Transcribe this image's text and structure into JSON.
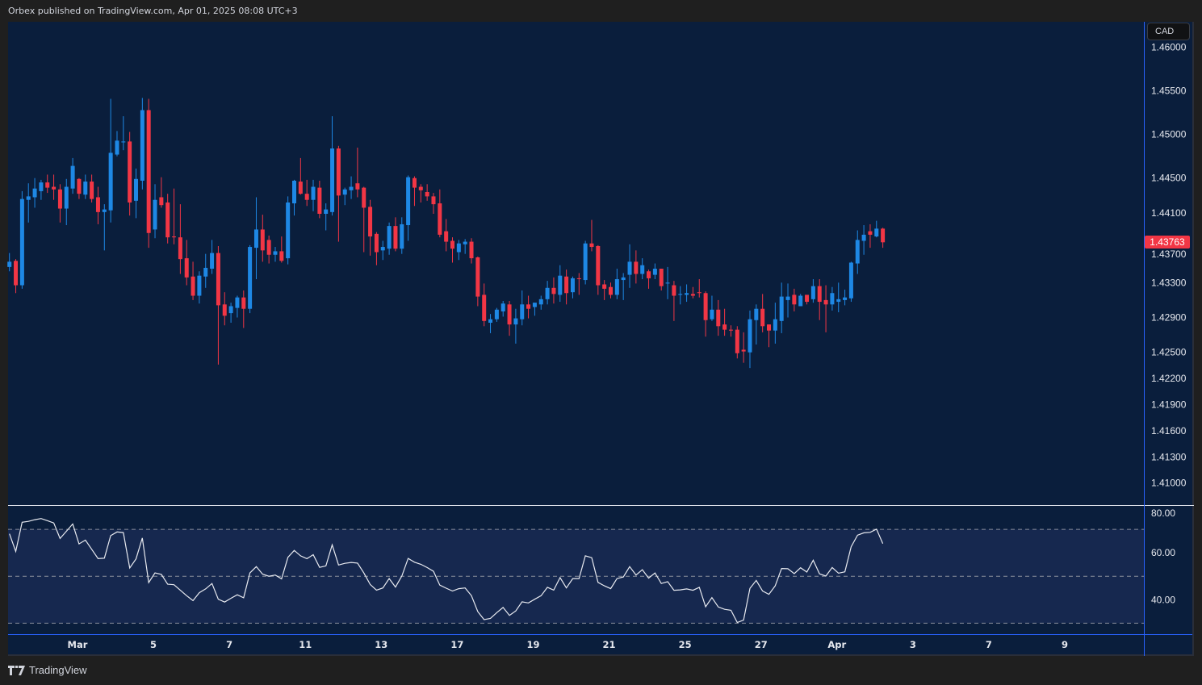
{
  "header": {
    "publisher_line": "Orbex published on TradingView.com, Apr 01, 2025 08:08 UTC+3"
  },
  "currency_button": "CAD",
  "last_price_label": "1.43763",
  "footer": {
    "brand": "TradingView",
    "logo_icon": "tradingview-logo-icon"
  },
  "colors": {
    "up": "#1e88e5",
    "down": "#f23645",
    "background": "#0a1e3c",
    "rsi_line": "#e8eaf0",
    "rsi_band": "#16284f",
    "separator": "#2962ff"
  },
  "chart_data": [
    {
      "type": "candlestick",
      "title": "",
      "xlabel": "",
      "ylabel": "",
      "ylim": [
        1.40747,
        1.46294
      ],
      "grid": false,
      "x_tick_labels": [
        "Mar",
        "5",
        "7",
        "11",
        "13",
        "17",
        "19",
        "21",
        "25",
        "27",
        "Apr",
        "3",
        "7",
        "9"
      ],
      "y_tick_labels": [
        "1.46000",
        "1.45500",
        "1.45000",
        "1.44500",
        "1.44100",
        "1.43700",
        "1.43300",
        "1.42900",
        "1.42500",
        "1.42200",
        "1.41900",
        "1.41600",
        "1.41300",
        "1.41000"
      ],
      "last_price": 1.43763,
      "candles_ohlc": [
        [
          1.4348,
          1.4364,
          1.4343,
          1.4354
        ],
        [
          1.4355,
          1.4357,
          1.4318,
          1.4327
        ],
        [
          1.4327,
          1.4435,
          1.4323,
          1.4426
        ],
        [
          1.4425,
          1.4444,
          1.4399,
          1.4429
        ],
        [
          1.4428,
          1.445,
          1.4416,
          1.4438
        ],
        [
          1.4435,
          1.4448,
          1.4425,
          1.4445
        ],
        [
          1.4445,
          1.4454,
          1.4433,
          1.4439
        ],
        [
          1.444,
          1.4454,
          1.4425,
          1.4437
        ],
        [
          1.4437,
          1.4443,
          1.4399,
          1.4415
        ],
        [
          1.4415,
          1.4449,
          1.4396,
          1.444
        ],
        [
          1.4438,
          1.4473,
          1.4432,
          1.4464
        ],
        [
          1.4449,
          1.445,
          1.4426,
          1.4432
        ],
        [
          1.4431,
          1.4454,
          1.4426,
          1.4446
        ],
        [
          1.4446,
          1.4454,
          1.4422,
          1.4426
        ],
        [
          1.4428,
          1.444,
          1.4397,
          1.4411
        ],
        [
          1.4411,
          1.442,
          1.4367,
          1.4414
        ],
        [
          1.4413,
          1.4541,
          1.4399,
          1.4479
        ],
        [
          1.4477,
          1.4504,
          1.4475,
          1.4493
        ],
        [
          1.4491,
          1.4521,
          1.4482,
          1.4492
        ],
        [
          1.4492,
          1.4503,
          1.4407,
          1.4422
        ],
        [
          1.4424,
          1.4461,
          1.4404,
          1.4449
        ],
        [
          1.4447,
          1.4542,
          1.4437,
          1.4528
        ],
        [
          1.4528,
          1.4541,
          1.437,
          1.4387
        ],
        [
          1.4391,
          1.4443,
          1.4381,
          1.4425
        ],
        [
          1.4428,
          1.4451,
          1.4416,
          1.4419
        ],
        [
          1.4422,
          1.4432,
          1.4375,
          1.4382
        ],
        [
          1.4383,
          1.4438,
          1.4374,
          1.4382
        ],
        [
          1.4382,
          1.442,
          1.434,
          1.4357
        ],
        [
          1.4358,
          1.4379,
          1.4327,
          1.4336
        ],
        [
          1.4337,
          1.4354,
          1.431,
          1.4315
        ],
        [
          1.4315,
          1.4343,
          1.4306,
          1.4338
        ],
        [
          1.4337,
          1.4363,
          1.4324,
          1.4347
        ],
        [
          1.4346,
          1.4379,
          1.434,
          1.4364
        ],
        [
          1.4364,
          1.4372,
          1.4236,
          1.4304
        ],
        [
          1.4305,
          1.4319,
          1.4281,
          1.4292
        ],
        [
          1.4295,
          1.4307,
          1.4284,
          1.4303
        ],
        [
          1.4301,
          1.4315,
          1.429,
          1.4313
        ],
        [
          1.4313,
          1.4321,
          1.4278,
          1.43
        ],
        [
          1.43,
          1.4373,
          1.4295,
          1.4371
        ],
        [
          1.437,
          1.4428,
          1.4334,
          1.4391
        ],
        [
          1.4391,
          1.4408,
          1.4354,
          1.4367
        ],
        [
          1.4379,
          1.4384,
          1.4352,
          1.4362
        ],
        [
          1.4362,
          1.4371,
          1.4354,
          1.4366
        ],
        [
          1.4366,
          1.4383,
          1.4353,
          1.4355
        ],
        [
          1.4358,
          1.4429,
          1.4351,
          1.4422
        ],
        [
          1.4421,
          1.4448,
          1.4407,
          1.4447
        ],
        [
          1.4446,
          1.4473,
          1.4431,
          1.4432
        ],
        [
          1.4432,
          1.4448,
          1.4418,
          1.4425
        ],
        [
          1.4425,
          1.4448,
          1.4412,
          1.444
        ],
        [
          1.4439,
          1.4447,
          1.4404,
          1.4409
        ],
        [
          1.4409,
          1.4421,
          1.439,
          1.4414
        ],
        [
          1.4411,
          1.4521,
          1.4407,
          1.4484
        ],
        [
          1.4484,
          1.4487,
          1.4377,
          1.443
        ],
        [
          1.4431,
          1.4439,
          1.4419,
          1.4437
        ],
        [
          1.4436,
          1.4452,
          1.4426,
          1.444
        ],
        [
          1.4444,
          1.4485,
          1.4428,
          1.4437
        ],
        [
          1.4439,
          1.444,
          1.4365,
          1.4416
        ],
        [
          1.4417,
          1.4425,
          1.4361,
          1.4383
        ],
        [
          1.4386,
          1.4388,
          1.435,
          1.4365
        ],
        [
          1.4367,
          1.4378,
          1.4356,
          1.4371
        ],
        [
          1.4369,
          1.4399,
          1.4362,
          1.4395
        ],
        [
          1.4395,
          1.4405,
          1.4366,
          1.4369
        ],
        [
          1.4369,
          1.4405,
          1.4363,
          1.4397
        ],
        [
          1.4396,
          1.4453,
          1.4378,
          1.4451
        ],
        [
          1.445,
          1.4452,
          1.4418,
          1.4439
        ],
        [
          1.444,
          1.4443,
          1.4422,
          1.4436
        ],
        [
          1.4434,
          1.4443,
          1.4424,
          1.4429
        ],
        [
          1.4429,
          1.4433,
          1.4409,
          1.442
        ],
        [
          1.4421,
          1.4437,
          1.4382,
          1.4385
        ],
        [
          1.4389,
          1.4403,
          1.4366,
          1.4377
        ],
        [
          1.4378,
          1.4382,
          1.4353,
          1.4369
        ],
        [
          1.4365,
          1.4379,
          1.4356,
          1.4375
        ],
        [
          1.4374,
          1.438,
          1.4363,
          1.4377
        ],
        [
          1.4377,
          1.4381,
          1.4352,
          1.4358
        ],
        [
          1.4359,
          1.436,
          1.4303,
          1.4314
        ],
        [
          1.4316,
          1.4329,
          1.428,
          1.4286
        ],
        [
          1.4284,
          1.4294,
          1.4272,
          1.4288
        ],
        [
          1.4288,
          1.4301,
          1.4285,
          1.4299
        ],
        [
          1.4297,
          1.4309,
          1.4291,
          1.4306
        ],
        [
          1.4305,
          1.4309,
          1.4269,
          1.4282
        ],
        [
          1.4282,
          1.43,
          1.426,
          1.4289
        ],
        [
          1.4288,
          1.4321,
          1.4281,
          1.4305
        ],
        [
          1.4305,
          1.4315,
          1.4289,
          1.43
        ],
        [
          1.4302,
          1.4307,
          1.4292,
          1.4307
        ],
        [
          1.4305,
          1.4315,
          1.4299,
          1.4311
        ],
        [
          1.4311,
          1.4332,
          1.4305,
          1.4324
        ],
        [
          1.4324,
          1.4336,
          1.4306,
          1.4317
        ],
        [
          1.4316,
          1.435,
          1.4308,
          1.4338
        ],
        [
          1.4337,
          1.4345,
          1.4305,
          1.4318
        ],
        [
          1.4319,
          1.4337,
          1.4312,
          1.4335
        ],
        [
          1.4335,
          1.4341,
          1.4316,
          1.4334
        ],
        [
          1.4333,
          1.4378,
          1.4328,
          1.4375
        ],
        [
          1.4375,
          1.4402,
          1.4366,
          1.4371
        ],
        [
          1.4372,
          1.4373,
          1.4316,
          1.4327
        ],
        [
          1.4328,
          1.4333,
          1.431,
          1.4323
        ],
        [
          1.4325,
          1.433,
          1.4312,
          1.4316
        ],
        [
          1.4316,
          1.4346,
          1.4311,
          1.4334
        ],
        [
          1.4333,
          1.4341,
          1.431,
          1.4336
        ],
        [
          1.4339,
          1.4374,
          1.4324,
          1.4354
        ],
        [
          1.4354,
          1.4367,
          1.4329,
          1.434
        ],
        [
          1.434,
          1.4358,
          1.4334,
          1.435
        ],
        [
          1.4343,
          1.4345,
          1.4323,
          1.4335
        ],
        [
          1.4339,
          1.4352,
          1.4334,
          1.4346
        ],
        [
          1.4346,
          1.4346,
          1.4321,
          1.4326
        ],
        [
          1.4329,
          1.4348,
          1.4311,
          1.433
        ],
        [
          1.4327,
          1.4332,
          1.4286,
          1.4315
        ],
        [
          1.4316,
          1.4326,
          1.4305,
          1.4317
        ],
        [
          1.4316,
          1.4328,
          1.4308,
          1.4318
        ],
        [
          1.4317,
          1.4325,
          1.4312,
          1.4315
        ],
        [
          1.4319,
          1.4334,
          1.4313,
          1.4318
        ],
        [
          1.4318,
          1.432,
          1.4268,
          1.4287
        ],
        [
          1.4288,
          1.4315,
          1.4286,
          1.4299
        ],
        [
          1.4299,
          1.431,
          1.4269,
          1.428
        ],
        [
          1.4282,
          1.43,
          1.4269,
          1.4276
        ],
        [
          1.4276,
          1.4281,
          1.4268,
          1.4275
        ],
        [
          1.4276,
          1.428,
          1.4243,
          1.4249
        ],
        [
          1.4253,
          1.4273,
          1.4238,
          1.4251
        ],
        [
          1.425,
          1.4298,
          1.4232,
          1.4288
        ],
        [
          1.4287,
          1.4305,
          1.4259,
          1.43
        ],
        [
          1.43,
          1.4317,
          1.4273,
          1.428
        ],
        [
          1.4282,
          1.4282,
          1.4256,
          1.4275
        ],
        [
          1.4275,
          1.4307,
          1.426,
          1.4288
        ],
        [
          1.4286,
          1.433,
          1.4272,
          1.4314
        ],
        [
          1.431,
          1.4329,
          1.429,
          1.4314
        ],
        [
          1.4316,
          1.4323,
          1.4297,
          1.4305
        ],
        [
          1.4303,
          1.4317,
          1.4303,
          1.4315
        ],
        [
          1.4316,
          1.4316,
          1.4305,
          1.4308
        ],
        [
          1.4311,
          1.4334,
          1.4307,
          1.4326
        ],
        [
          1.4326,
          1.4334,
          1.4287,
          1.4308
        ],
        [
          1.431,
          1.4327,
          1.4273,
          1.4305
        ],
        [
          1.4305,
          1.4325,
          1.4298,
          1.4318
        ],
        [
          1.4308,
          1.433,
          1.4296,
          1.4311
        ],
        [
          1.431,
          1.4322,
          1.4304,
          1.4313
        ],
        [
          1.4312,
          1.4354,
          1.4308,
          1.4353
        ],
        [
          1.4352,
          1.439,
          1.434,
          1.4379
        ],
        [
          1.4378,
          1.4396,
          1.4362,
          1.4385
        ],
        [
          1.4389,
          1.4397,
          1.437,
          1.4385
        ],
        [
          1.4383,
          1.4401,
          1.4382,
          1.4392
        ],
        [
          1.4392,
          1.4393,
          1.437,
          1.43763
        ]
      ]
    },
    {
      "type": "line",
      "title": "",
      "ylim": [
        25.3,
        80
      ],
      "grid": false,
      "y_tick_labels": [
        "80.00",
        "60.00",
        "40.00"
      ],
      "levels": [
        70,
        50,
        30
      ],
      "band": [
        30,
        70
      ],
      "values": [
        68.1,
        60.6,
        73.0,
        73.4,
        74.1,
        74.6,
        73.7,
        72.7,
        66.1,
        69.2,
        72.3,
        63.8,
        65.4,
        61.5,
        57.5,
        57.7,
        67.3,
        68.9,
        68.6,
        53.5,
        57.4,
        66.3,
        47.3,
        51.4,
        50.8,
        46.6,
        46.4,
        44.0,
        41.7,
        39.6,
        43.0,
        44.6,
        46.9,
        40.2,
        39.0,
        40.6,
        42.1,
        40.8,
        51.4,
        54.1,
        50.9,
        50.0,
        50.5,
        48.9,
        58.1,
        61.0,
        58.7,
        57.5,
        59.2,
        53.8,
        54.4,
        63.4,
        54.8,
        55.5,
        55.9,
        55.6,
        51.4,
        46.5,
        44.1,
        45.0,
        49.0,
        45.4,
        50.1,
        57.6,
        56.0,
        55.1,
        53.7,
        52.1,
        46.2,
        44.9,
        43.7,
        44.7,
        45.0,
        41.7,
        34.9,
        31.5,
        32.0,
        34.5,
        36.7,
        33.3,
        35.2,
        39.1,
        38.6,
        40.2,
        41.7,
        45.3,
        44.1,
        49.4,
        45.0,
        49.0,
        49.0,
        58.7,
        57.9,
        47.4,
        45.9,
        44.7,
        49.0,
        49.7,
        54.1,
        50.5,
        52.8,
        49.2,
        51.4,
        46.9,
        47.7,
        44.0,
        44.2,
        44.6,
        44.0,
        45.3,
        37.0,
        40.9,
        36.9,
        35.9,
        35.5,
        30.3,
        31.3,
        44.8,
        48.2,
        43.7,
        42.3,
        45.9,
        53.3,
        53.2,
        51.1,
        53.6,
        51.8,
        56.8,
        51.0,
        50.1,
        53.7,
        51.3,
        51.9,
        62.6,
        67.5,
        68.5,
        68.7,
        70.1,
        63.9
      ]
    }
  ]
}
